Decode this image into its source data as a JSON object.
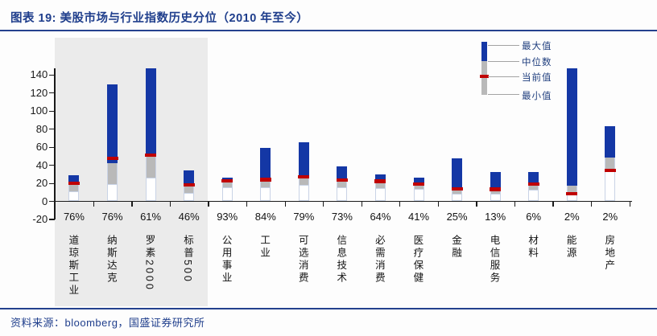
{
  "header": {
    "title": "图表 19:  美股市场与行业指数历史分位（2010 年至今）"
  },
  "legend": {
    "items": [
      "最大值",
      "中位数",
      "当前值",
      "最小值"
    ]
  },
  "footer": {
    "text": "资料来源：bloomberg，国盛证券研究所"
  },
  "colors": {
    "accent_navy": "#1f3e8c",
    "bar_blue": "#1437a5",
    "bar_gray": "#b9b9b9",
    "bar_red": "#c00000",
    "min_segment_border": "#c9d3e6",
    "highlight_bg": "#ebebeb",
    "axis": "#1a1a1a"
  },
  "chart_data": {
    "type": "bar",
    "subtype": "floating-range-bar (min–median–max with current-value marker)",
    "title": "美股市场与行业指数历史分位（2010 年至今）",
    "xlabel": "",
    "ylabel": "",
    "ylim": [
      -20,
      140
    ],
    "yticks": [
      -20,
      0,
      20,
      40,
      60,
      80,
      100,
      120,
      140
    ],
    "grid": false,
    "legend_position": "top-right",
    "highlighted_group_note": "前四个市场指数列带浅灰底色",
    "categories": [
      {
        "name": "道琼斯工业",
        "percentile": "76%",
        "min": 11,
        "median": 18.5,
        "current": 19.8,
        "max": 28.8,
        "highlighted": true,
        "clipped_at_top": false
      },
      {
        "name": "纳斯达克",
        "percentile": "76%",
        "min": 19,
        "median": 42,
        "current": 47.5,
        "max": 130,
        "highlighted": true,
        "clipped_at_top": false
      },
      {
        "name": "罗素2000",
        "percentile": "61%",
        "min": 26.5,
        "median": 49,
        "current": 51.5,
        "max": 147.5,
        "highlighted": true,
        "clipped_at_top": true
      },
      {
        "name": "标普500",
        "percentile": "46%",
        "min": 9.5,
        "median": 19.8,
        "current": 18.2,
        "max": 34,
        "highlighted": true,
        "clipped_at_top": false
      },
      {
        "name": "公用事业",
        "percentile": "93%",
        "min": 15.8,
        "median": 21.3,
        "current": 22.7,
        "max": 26.5,
        "highlighted": false,
        "clipped_at_top": false
      },
      {
        "name": "工业",
        "percentile": "84%",
        "min": 15.3,
        "median": 23,
        "current": 24.2,
        "max": 59,
        "highlighted": false,
        "clipped_at_top": false
      },
      {
        "name": "可选消费",
        "percentile": "79%",
        "min": 18.3,
        "median": 26,
        "current": 27.3,
        "max": 65.5,
        "highlighted": false,
        "clipped_at_top": false
      },
      {
        "name": "信息技术",
        "percentile": "73%",
        "min": 15.3,
        "median": 22.8,
        "current": 23.7,
        "max": 38.8,
        "highlighted": false,
        "clipped_at_top": false
      },
      {
        "name": "必需消费",
        "percentile": "64%",
        "min": 14.7,
        "median": 21.8,
        "current": 22.4,
        "max": 29.5,
        "highlighted": false,
        "clipped_at_top": false
      },
      {
        "name": "医疗保健",
        "percentile": "41%",
        "min": 13.8,
        "median": 20.9,
        "current": 19.4,
        "max": 26.5,
        "highlighted": false,
        "clipped_at_top": false
      },
      {
        "name": "金融",
        "percentile": "25%",
        "min": 8.5,
        "median": 15.5,
        "current": 13.9,
        "max": 47.4,
        "highlighted": false,
        "clipped_at_top": false
      },
      {
        "name": "电信服务",
        "percentile": "13%",
        "min": 8.5,
        "median": 14.8,
        "current": 13.4,
        "max": 32.5,
        "highlighted": false,
        "clipped_at_top": false
      },
      {
        "name": "材料",
        "percentile": "6%",
        "min": 13,
        "median": 20.4,
        "current": 19,
        "max": 32.5,
        "highlighted": false,
        "clipped_at_top": false
      },
      {
        "name": "能源",
        "percentile": "2%",
        "min": 7.3,
        "median": 17.6,
        "current": 8.8,
        "max": 147.5,
        "highlighted": false,
        "clipped_at_top": true
      },
      {
        "name": "房地产",
        "percentile": "2%",
        "min": 33.4,
        "median": 48.4,
        "current": 34.3,
        "max": 83.5,
        "highlighted": false,
        "clipped_at_top": false
      }
    ],
    "series": [
      {
        "name": "最小值",
        "values": [
          11,
          19,
          26.5,
          9.5,
          15.8,
          15.3,
          18.3,
          15.3,
          14.7,
          13.8,
          8.5,
          8.5,
          13,
          7.3,
          33.4
        ]
      },
      {
        "name": "中位数",
        "values": [
          18.5,
          42,
          49,
          19.8,
          21.3,
          23,
          26,
          22.8,
          21.8,
          20.9,
          15.5,
          14.8,
          20.4,
          17.6,
          48.4
        ]
      },
      {
        "name": "当前值",
        "values": [
          19.8,
          47.5,
          51.5,
          18.2,
          22.7,
          24.2,
          27.3,
          23.7,
          22.4,
          19.4,
          13.9,
          13.4,
          19,
          8.8,
          34.3
        ]
      },
      {
        "name": "最大值",
        "values": [
          28.8,
          130,
          147.5,
          34,
          26.5,
          59,
          65.5,
          38.8,
          29.5,
          26.5,
          47.4,
          32.5,
          32.5,
          147.5,
          83.5
        ]
      }
    ]
  }
}
